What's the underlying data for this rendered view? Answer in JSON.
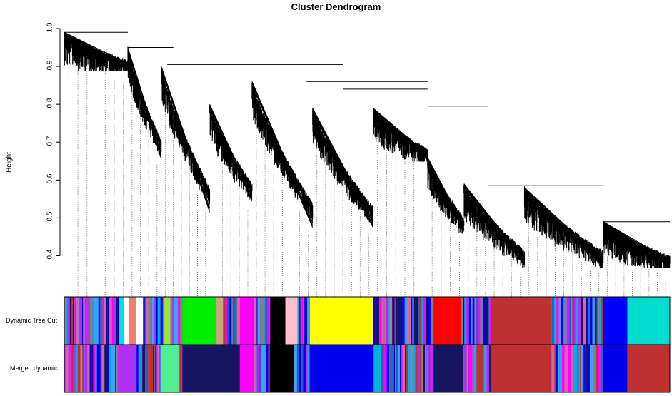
{
  "chart_data": {
    "type": "dendrogram",
    "title": "Cluster Dendrogram",
    "ylabel": "Height",
    "ylim": [
      0.35,
      1.0
    ],
    "yticks": [
      0.4,
      0.5,
      0.6,
      0.7,
      0.8,
      0.9,
      1.0
    ],
    "ytick_labels": [
      "0.4",
      "0.5",
      "0.6",
      "0.7",
      "0.8",
      "0.9",
      "1.0"
    ],
    "branches": [
      {
        "start": 0.0,
        "end": 0.105,
        "top": 0.99,
        "bottom": 0.9
      },
      {
        "start": 0.105,
        "end": 0.16,
        "top": 0.95,
        "bottom": 0.66
      },
      {
        "start": 0.16,
        "end": 0.24,
        "top": 0.9,
        "bottom": 0.52
      },
      {
        "start": 0.24,
        "end": 0.31,
        "top": 0.8,
        "bottom": 0.55
      },
      {
        "start": 0.31,
        "end": 0.41,
        "top": 0.86,
        "bottom": 0.48
      },
      {
        "start": 0.41,
        "end": 0.51,
        "top": 0.79,
        "bottom": 0.48
      },
      {
        "start": 0.51,
        "end": 0.6,
        "top": 0.79,
        "bottom": 0.66
      },
      {
        "start": 0.6,
        "end": 0.66,
        "top": 0.66,
        "bottom": 0.47
      },
      {
        "start": 0.66,
        "end": 0.76,
        "top": 0.59,
        "bottom": 0.38
      },
      {
        "start": 0.76,
        "end": 0.89,
        "top": 0.58,
        "bottom": 0.38
      },
      {
        "start": 0.89,
        "end": 1.0,
        "top": 0.49,
        "bottom": 0.38
      }
    ],
    "merges": [
      {
        "x1": 0.0,
        "x2": 0.105,
        "height": 0.99
      },
      {
        "x1": 0.105,
        "x2": 0.18,
        "height": 0.95
      },
      {
        "x1": 0.17,
        "x2": 0.46,
        "height": 0.905
      },
      {
        "x1": 0.4,
        "x2": 0.6,
        "height": 0.86
      },
      {
        "x1": 0.46,
        "x2": 0.6,
        "height": 0.84
      },
      {
        "x1": 0.6,
        "x2": 0.7,
        "height": 0.795
      },
      {
        "x1": 0.7,
        "x2": 0.89,
        "height": 0.585
      },
      {
        "x1": 0.89,
        "x2": 1.0,
        "height": 0.49
      }
    ],
    "color_rows": [
      {
        "label": "Dynamic Tree Cut",
        "segments": [
          {
            "start": 0.0,
            "end": 0.09,
            "color": "mixed"
          },
          {
            "start": 0.09,
            "end": 0.098,
            "color": "#00e0e0"
          },
          {
            "start": 0.098,
            "end": 0.106,
            "color": "#ffffff"
          },
          {
            "start": 0.106,
            "end": 0.118,
            "color": "#f08070"
          },
          {
            "start": 0.118,
            "end": 0.13,
            "color": "#ffffff"
          },
          {
            "start": 0.13,
            "end": 0.165,
            "color": "mixed"
          },
          {
            "start": 0.165,
            "end": 0.175,
            "color": "#a0e040"
          },
          {
            "start": 0.175,
            "end": 0.195,
            "color": "mixed"
          },
          {
            "start": 0.195,
            "end": 0.25,
            "color": "#00ee00"
          },
          {
            "start": 0.25,
            "end": 0.262,
            "color": "#c8a880"
          },
          {
            "start": 0.262,
            "end": 0.29,
            "color": "mixed"
          },
          {
            "start": 0.29,
            "end": 0.313,
            "color": "#ff00ff"
          },
          {
            "start": 0.313,
            "end": 0.34,
            "color": "mixed"
          },
          {
            "start": 0.34,
            "end": 0.365,
            "color": "#000000"
          },
          {
            "start": 0.365,
            "end": 0.385,
            "color": "#ffc0cb"
          },
          {
            "start": 0.385,
            "end": 0.405,
            "color": "mixed"
          },
          {
            "start": 0.405,
            "end": 0.51,
            "color": "#ffff00"
          },
          {
            "start": 0.51,
            "end": 0.61,
            "color": "mixed"
          },
          {
            "start": 0.61,
            "end": 0.655,
            "color": "#ff0000"
          },
          {
            "start": 0.655,
            "end": 0.705,
            "color": "mixed"
          },
          {
            "start": 0.705,
            "end": 0.805,
            "color": "#c03030"
          },
          {
            "start": 0.805,
            "end": 0.89,
            "color": "mixed"
          },
          {
            "start": 0.89,
            "end": 0.93,
            "color": "#0000ff"
          },
          {
            "start": 0.93,
            "end": 1.0,
            "color": "#00dcd0"
          }
        ]
      },
      {
        "label": "Merged dynamic",
        "segments": [
          {
            "start": 0.0,
            "end": 0.088,
            "color": "mixed"
          },
          {
            "start": 0.088,
            "end": 0.118,
            "color": "#b030f0"
          },
          {
            "start": 0.118,
            "end": 0.16,
            "color": "mixed"
          },
          {
            "start": 0.16,
            "end": 0.19,
            "color": "#50ee90"
          },
          {
            "start": 0.19,
            "end": 0.195,
            "color": "mixed"
          },
          {
            "start": 0.195,
            "end": 0.29,
            "color": "#151560"
          },
          {
            "start": 0.29,
            "end": 0.313,
            "color": "#ff00ff"
          },
          {
            "start": 0.313,
            "end": 0.34,
            "color": "mixed"
          },
          {
            "start": 0.34,
            "end": 0.38,
            "color": "#000000"
          },
          {
            "start": 0.38,
            "end": 0.405,
            "color": "mixed"
          },
          {
            "start": 0.405,
            "end": 0.51,
            "color": "#0000ee"
          },
          {
            "start": 0.51,
            "end": 0.61,
            "color": "mixed"
          },
          {
            "start": 0.61,
            "end": 0.655,
            "color": "#151560"
          },
          {
            "start": 0.655,
            "end": 0.705,
            "color": "mixed"
          },
          {
            "start": 0.705,
            "end": 0.805,
            "color": "#c03030"
          },
          {
            "start": 0.805,
            "end": 0.89,
            "color": "mixed"
          },
          {
            "start": 0.89,
            "end": 0.93,
            "color": "#0000ee"
          },
          {
            "start": 0.93,
            "end": 1.0,
            "color": "#c03030"
          }
        ]
      }
    ],
    "mixed_palette": [
      "#b030f0",
      "#151560",
      "#0000ee",
      "#ff00ff",
      "#00b0e0",
      "#c03030",
      "#808080",
      "#2060c0",
      "#e060a0",
      "#40a0ff"
    ]
  }
}
